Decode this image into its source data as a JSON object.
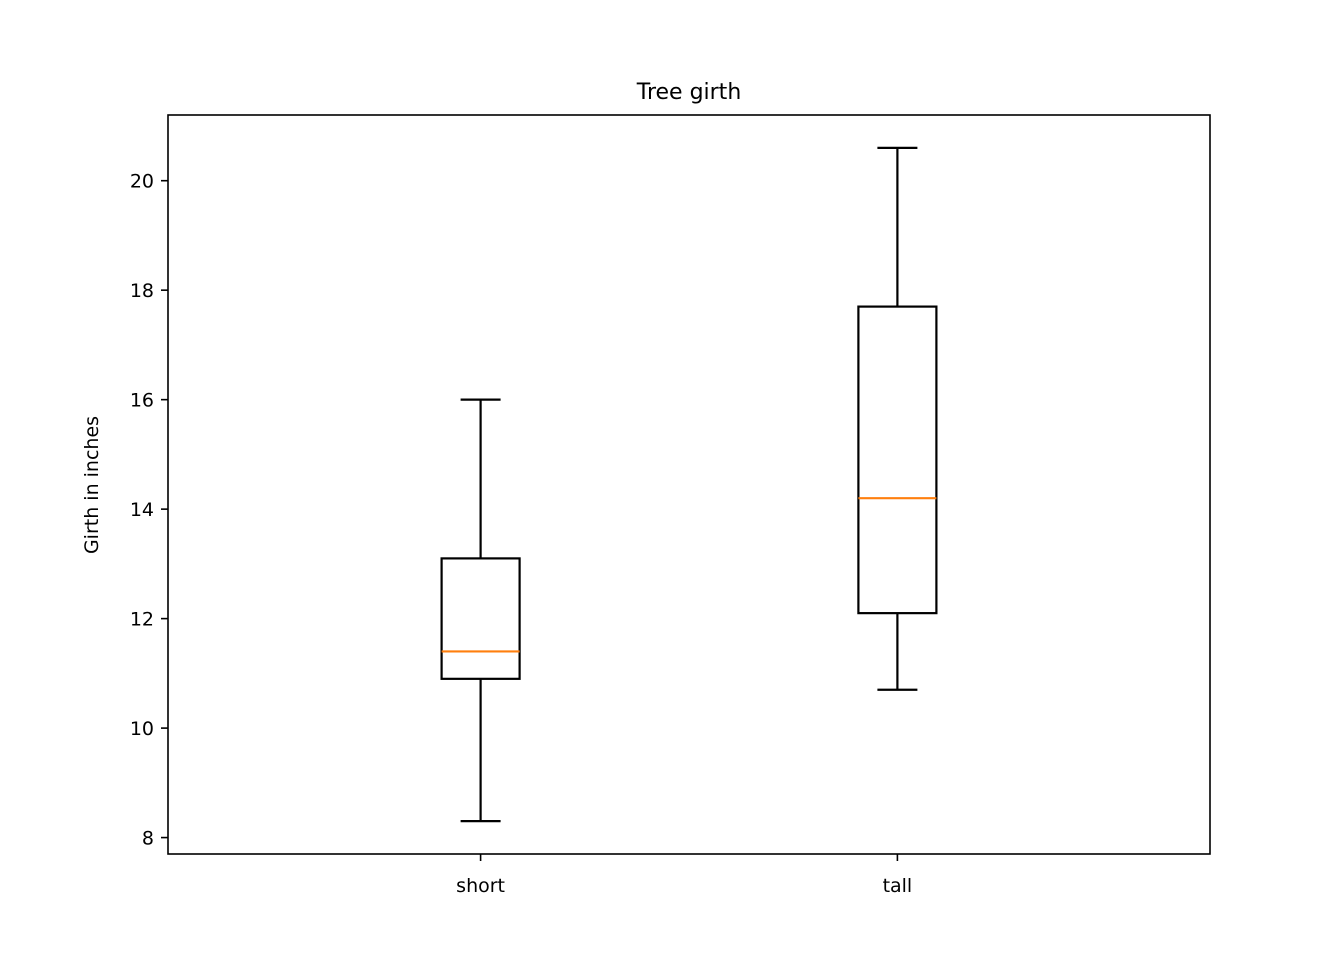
{
  "chart_data": {
    "type": "box",
    "title": "Tree girth",
    "xlabel": "",
    "ylabel": "Girth in inches",
    "ylim": [
      7.7,
      21.2
    ],
    "yticks": [
      8,
      10,
      12,
      14,
      16,
      18,
      20
    ],
    "grid": false,
    "categories": [
      "short",
      "tall"
    ],
    "boxes": [
      {
        "category": "short",
        "whisker_low": 8.3,
        "q1": 10.9,
        "median": 11.4,
        "q3": 13.1,
        "whisker_high": 16.0
      },
      {
        "category": "tall",
        "whisker_low": 10.7,
        "q1": 12.1,
        "median": 14.2,
        "q3": 17.7,
        "whisker_high": 20.6
      }
    ],
    "colors": {
      "box": "#000000",
      "median": "#ff7f0e"
    }
  }
}
